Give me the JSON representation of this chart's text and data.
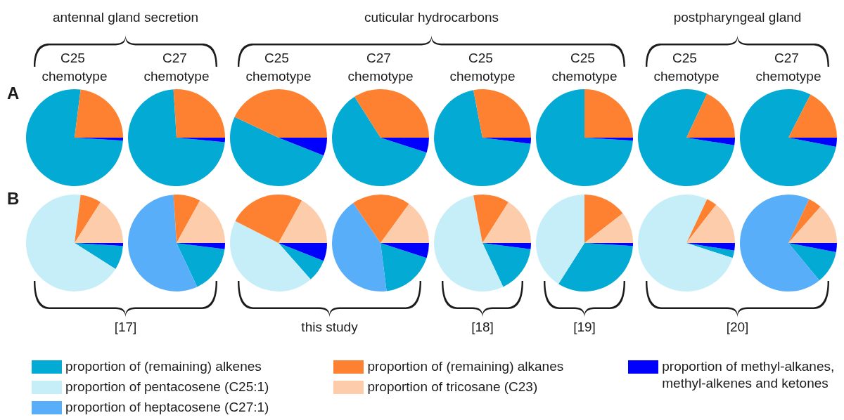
{
  "chart_data": {
    "type": "pie",
    "legend": "bottom",
    "categories": [
      "proportion of (remaining) alkenes",
      "proportion of pentacosene (C25:1)",
      "proportion of heptacosene (C27:1)",
      "proportion of (remaining) alkanes",
      "proportion of tricosane (C23)",
      "proportion of methyl-alkanes, methyl-alkenes and ketones"
    ],
    "colors": [
      "#02aad4",
      "#c6eef9",
      "#59aefa",
      "#fd8130",
      "#fdccaa",
      "#0000ff"
    ],
    "series": [
      {
        "name": "C25 chemotype",
        "values": [
          76,
          null,
          null,
          23,
          null,
          1
        ]
      },
      {
        "name": "C27 chemotype",
        "values": [
          72.5,
          null,
          null,
          26,
          null,
          1.5
        ]
      },
      {
        "name": "C25 chemotype",
        "values": [
          51,
          null,
          null,
          43,
          null,
          6
        ]
      },
      {
        "name": "C27 chemotype",
        "values": [
          61,
          null,
          null,
          34,
          null,
          5
        ]
      },
      {
        "name": "C25 chemotype",
        "values": [
          70,
          null,
          null,
          28,
          null,
          2
        ]
      },
      {
        "name": "C25 chemotype",
        "values": [
          74,
          null,
          null,
          25,
          null,
          1
        ]
      },
      {
        "name": "C25 chemotype",
        "values": [
          79.5,
          null,
          null,
          18,
          null,
          2.5
        ]
      },
      {
        "name": "C27 chemotype",
        "values": [
          79.5,
          null,
          null,
          17.5,
          null,
          3
        ]
      },
      {
        "values": [
          8,
          68,
          null,
          7,
          16,
          1
        ]
      },
      {
        "values": [
          16,
          null,
          56,
          9,
          17,
          2
        ]
      },
      {
        "values": [
          7.5,
          44,
          null,
          25.5,
          17,
          6
        ]
      },
      {
        "values": [
          18,
          null,
          42.5,
          19.5,
          15,
          5
        ]
      },
      {
        "values": [
          16,
          54,
          null,
          12,
          16,
          2
        ]
      },
      {
        "values": [
          33,
          41,
          null,
          14.5,
          10.5,
          1
        ]
      },
      {
        "values": [
          2.5,
          77,
          null,
          3.5,
          14.5,
          2.5
        ]
      },
      {
        "values": [
          11,
          null,
          68,
          4.5,
          13.5,
          3
        ]
      }
    ],
    "annotations": [
      "A",
      "B",
      "antennal gland secretion",
      "cuticular hydrocarbons",
      "postpharyngeal gland",
      "[17]",
      "this study",
      "[18]",
      "[19]",
      "[20]"
    ]
  }
}
